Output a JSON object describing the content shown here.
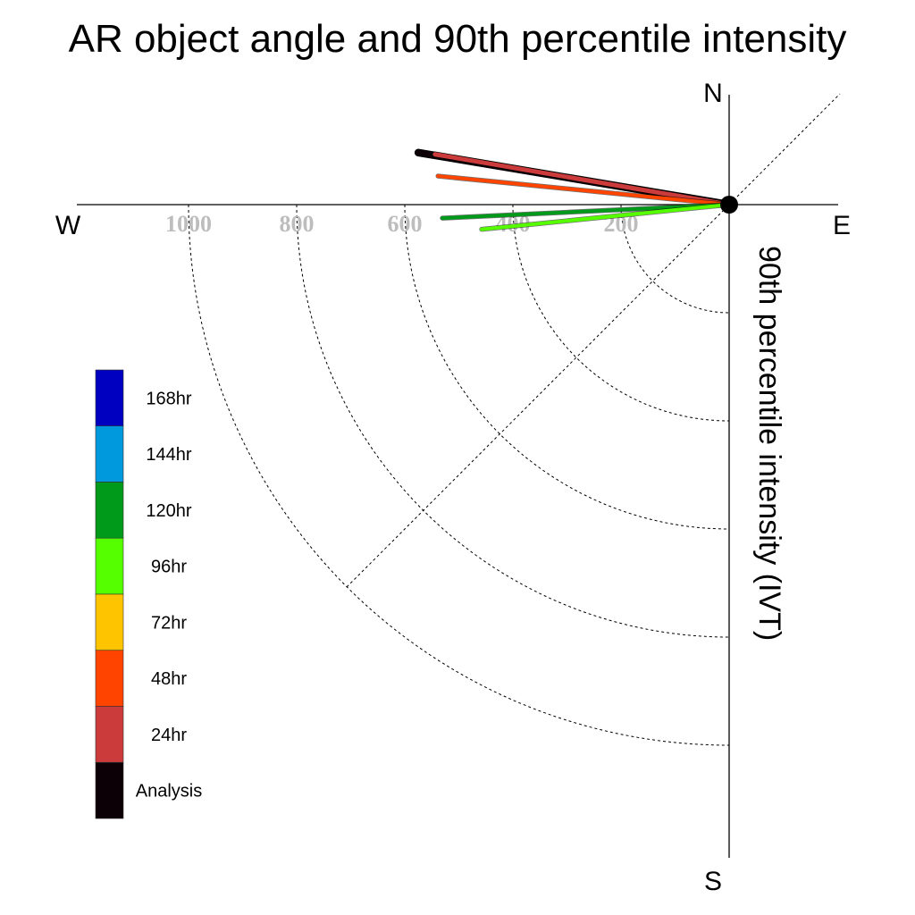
{
  "chart_data": {
    "type": "polar-vector",
    "title": "AR object angle and 90th percentile intensity",
    "ylabel": "90th percentile intensity (IVT)",
    "compass": {
      "north": "N",
      "south": "S",
      "east": "E",
      "west": "W"
    },
    "radial_ticks": [
      {
        "value": 200,
        "label": "200"
      },
      {
        "value": 400,
        "label": "400"
      },
      {
        "value": 600,
        "label": "600"
      },
      {
        "value": 800,
        "label": "800"
      },
      {
        "value": 1000,
        "label": "1000"
      }
    ],
    "rmax": 1200,
    "grid": true,
    "legend_position": "left",
    "legend": [
      {
        "label": "168hr",
        "color": "#0000c0"
      },
      {
        "label": "144hr",
        "color": "#0099dd"
      },
      {
        "label": "120hr",
        "color": "#009a1a"
      },
      {
        "label": "96hr",
        "color": "#55ff00"
      },
      {
        "label": "72hr",
        "color": "#ffc400"
      },
      {
        "label": "48hr",
        "color": "#ff4400"
      },
      {
        "label": "24hr",
        "color": "#cc3b3b"
      },
      {
        "label": "Analysis",
        "color": "#0c0006"
      }
    ],
    "series": [
      {
        "name": "Analysis",
        "magnitude": 583,
        "angle_deg": 170.5,
        "color": "#0c0006",
        "width": 7
      },
      {
        "name": "24hr",
        "magnitude": 552,
        "angle_deg": 170.3,
        "color": "#cc3b3b",
        "width": 5
      },
      {
        "name": "48hr",
        "magnitude": 541,
        "angle_deg": 174.4,
        "color": "#ff4400",
        "width": 4
      },
      {
        "name": "120hr",
        "magnitude": 531,
        "angle_deg": 182.7,
        "color": "#009a1a",
        "width": 4
      },
      {
        "name": "96hr",
        "magnitude": 460,
        "angle_deg": 185.7,
        "color": "#55ff00",
        "width": 4
      }
    ]
  }
}
